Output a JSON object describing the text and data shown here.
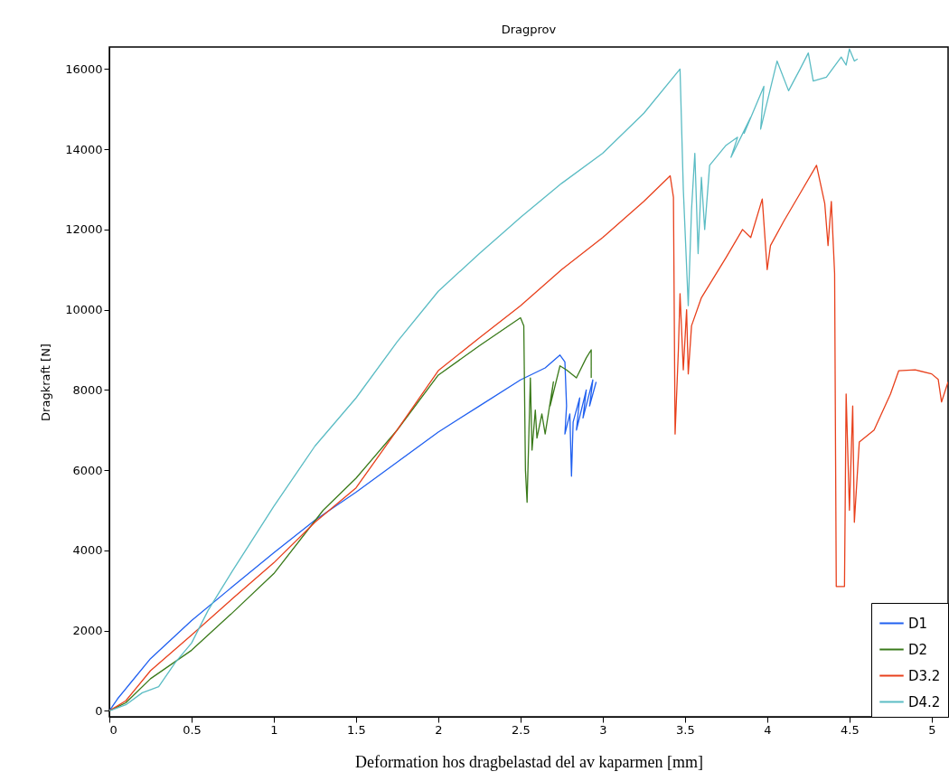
{
  "chart_data": {
    "type": "line",
    "title": "Dragprov",
    "xlabel": "Deformation hos dragbelastad del av kaparmen [mm]",
    "ylabel": "Dragkraft [N]",
    "xlim": [
      0,
      5.1
    ],
    "xticks": [
      0,
      0.5,
      1,
      1.5,
      2,
      2.5,
      3,
      3.5,
      4,
      4.5,
      5
    ],
    "ylim": [
      -150,
      16550
    ],
    "yticks": [
      0,
      2000,
      4000,
      6000,
      8000,
      10000,
      12000,
      14000,
      16000
    ],
    "legend": "bottom right",
    "line_style": "solid",
    "series": [
      {
        "name": "D1",
        "color": "#2060f0",
        "x": [
          0,
          0.05,
          0.13,
          0.25,
          0.5,
          0.75,
          1,
          1.25,
          1.5,
          1.75,
          2,
          2.25,
          2.5,
          2.65,
          2.74,
          2.77,
          2.78,
          2.77,
          2.8,
          2.81,
          2.82,
          2.86,
          2.84,
          2.9,
          2.88,
          2.94,
          2.92,
          2.96
        ],
        "values": [
          0,
          300,
          700,
          1300,
          2250,
          3100,
          3940,
          4750,
          5450,
          6200,
          6950,
          7600,
          8250,
          8550,
          8870,
          8700,
          7600,
          6900,
          7400,
          5850,
          7200,
          7800,
          7000,
          8000,
          7300,
          8250,
          7600,
          8200
        ]
      },
      {
        "name": "D2",
        "color": "#3a7a1a",
        "x": [
          0,
          0.1,
          0.25,
          0.5,
          0.75,
          1,
          1.3,
          1.5,
          1.75,
          2,
          2.25,
          2.5,
          2.52,
          2.53,
          2.54,
          2.56,
          2.57,
          2.59,
          2.6,
          2.63,
          2.65,
          2.7,
          2.68,
          2.74,
          2.78,
          2.84,
          2.9,
          2.93,
          2.93
        ],
        "values": [
          0,
          200,
          800,
          1510,
          2450,
          3420,
          5000,
          5800,
          7000,
          8370,
          9100,
          9800,
          9600,
          6000,
          5200,
          8300,
          6500,
          7500,
          6800,
          7400,
          6900,
          8200,
          7600,
          8600,
          8500,
          8300,
          8800,
          9000,
          8300
        ]
      },
      {
        "name": "D3.2",
        "color": "#e8401c",
        "x": [
          0,
          0.1,
          0.25,
          0.5,
          0.75,
          1,
          1.25,
          1.5,
          1.75,
          2,
          2.25,
          2.5,
          2.75,
          3,
          3.25,
          3.41,
          3.43,
          3.44,
          3.46,
          3.47,
          3.49,
          3.51,
          3.52,
          3.54,
          3.6,
          3.75,
          3.85,
          3.9,
          3.97,
          4.0,
          4.02,
          4.1,
          4.2,
          4.3,
          4.35,
          4.37,
          4.39,
          4.41,
          4.42,
          4.47,
          4.48,
          4.5,
          4.52,
          4.53,
          4.56,
          4.65,
          4.75,
          4.8,
          4.9,
          5.0,
          5.04,
          5.06,
          5.1
        ],
        "values": [
          0,
          250,
          1000,
          1890,
          2800,
          3690,
          4700,
          5560,
          7000,
          8480,
          9300,
          10100,
          11000,
          11800,
          12700,
          13340,
          12800,
          6900,
          9000,
          10400,
          8500,
          10000,
          8400,
          9600,
          10300,
          11300,
          12000,
          11800,
          12760,
          11000,
          11600,
          12200,
          12900,
          13600,
          12650,
          11600,
          12700,
          10900,
          3100,
          3100,
          7900,
          5000,
          7600,
          4700,
          6700,
          7000,
          7900,
          8480,
          8500,
          8400,
          8260,
          7700,
          8200
        ]
      },
      {
        "name": "D4.2",
        "color": "#5bbcc4",
        "x": [
          0,
          0.1,
          0.2,
          0.3,
          0.4,
          0.5,
          0.6,
          0.75,
          1,
          1.25,
          1.5,
          1.75,
          2,
          2.25,
          2.5,
          2.75,
          3,
          3.25,
          3.47,
          3.49,
          3.52,
          3.54,
          3.56,
          3.58,
          3.6,
          3.62,
          3.65,
          3.75,
          3.82,
          3.78,
          3.9,
          3.86,
          3.98,
          3.96,
          4.06,
          4.13,
          4.2,
          4.25,
          4.28,
          4.36,
          4.45,
          4.48,
          4.5,
          4.53,
          4.55
        ],
        "values": [
          0,
          150,
          450,
          600,
          1200,
          1690,
          2500,
          3500,
          5100,
          6600,
          7800,
          9200,
          10460,
          11400,
          12300,
          13150,
          13900,
          14900,
          16000,
          13000,
          10100,
          12500,
          13900,
          11400,
          13300,
          12000,
          13600,
          14100,
          14300,
          13800,
          14800,
          14400,
          15570,
          14500,
          16200,
          15460,
          16000,
          16400,
          15700,
          15800,
          16300,
          16100,
          16500,
          16200,
          16250
        ]
      }
    ]
  }
}
